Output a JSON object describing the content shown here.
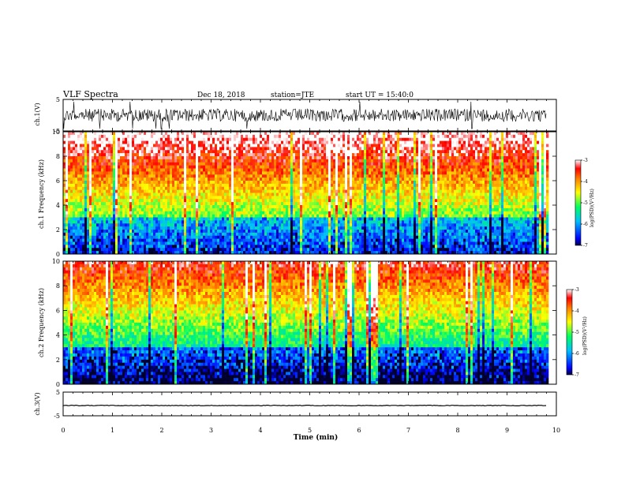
{
  "header": {
    "title": "VLF Spectra",
    "date": "Dec 18, 2018",
    "station": "station=JTE",
    "start": "start UT =  15:40:0"
  },
  "colors": {
    "background": "#ffffff",
    "axis": "#000000",
    "trace": "#000000",
    "colormap": [
      "#000000",
      "#0000ff",
      "#00c8ff",
      "#00ff80",
      "#ffff00",
      "#ff8000",
      "#ff0000",
      "#ffffff"
    ]
  },
  "chart_data": [
    {
      "type": "line",
      "ylabel": "ch.1(V)",
      "ylim": [
        -5,
        5
      ],
      "yticks": [
        "5",
        "-5"
      ],
      "xlim": [
        0,
        10
      ],
      "note": "dense noisy waveform, amplitude roughly ±3 V with spikes to ±5 V"
    },
    {
      "type": "heatmap",
      "ylabel": "ch.1 Frequency (kHz)",
      "ylim": [
        0,
        10
      ],
      "yticks": [
        "0",
        "2",
        "4",
        "6",
        "8",
        "10"
      ],
      "xlim": [
        0,
        10
      ],
      "colorbar": {
        "label": "log(PSD)(V²/Hz)",
        "range": [
          -7,
          -3
        ],
        "ticks": [
          "-3",
          "-4",
          "-5",
          "-6",
          "-7"
        ]
      }
    },
    {
      "type": "heatmap",
      "ylabel": "ch.2 Frequency (kHz)",
      "ylim": [
        0,
        10
      ],
      "yticks": [
        "0",
        "2",
        "4",
        "6",
        "8",
        "10"
      ],
      "xlim": [
        0,
        10
      ],
      "colorbar": {
        "label": "log(PSD)(V²/Hz)",
        "range": [
          -7,
          -3
        ],
        "ticks": [
          "-3",
          "-4",
          "-5",
          "-6",
          "-7"
        ]
      }
    },
    {
      "type": "line",
      "ylabel": "ch.3(V)",
      "ylim": [
        -5,
        5
      ],
      "yticks": [
        "5",
        "-5"
      ],
      "xlim": [
        0,
        10
      ],
      "note": "nearly flat trace slightly below 0 V"
    }
  ],
  "xaxis": {
    "label": "Time  (min)",
    "range": [
      0,
      10
    ],
    "ticks": [
      "0",
      "1",
      "2",
      "3",
      "4",
      "5",
      "6",
      "7",
      "8",
      "9",
      "10"
    ],
    "data_end": 9.8
  }
}
